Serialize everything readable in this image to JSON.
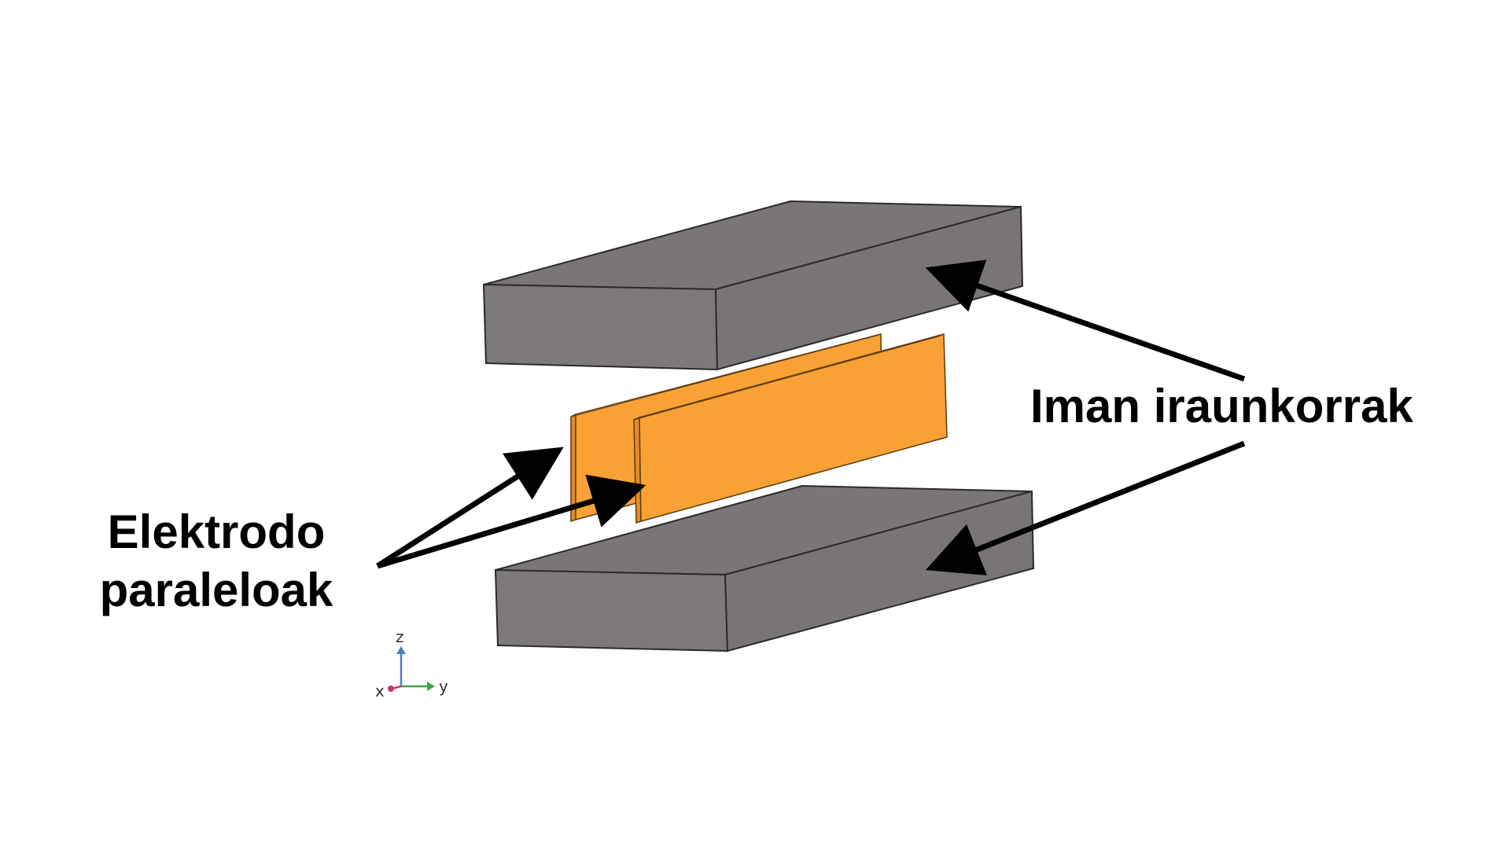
{
  "labels": {
    "magnets": "Iman iraunkorrak",
    "electrodes_line1": "Elektrodo",
    "electrodes_line2": "paraleloak"
  },
  "axes": {
    "z": "z",
    "y": "y",
    "x": "x"
  },
  "colors": {
    "magnet_top": "#7b7676",
    "magnet_front": "#7d7979",
    "magnet_side": "#6f6b6b",
    "magnet_edge": "#2a2a2a",
    "electrode": "#f9a134",
    "electrode_side": "#e58c22",
    "arrow": "#000000",
    "axis_z": "#4a7fc1",
    "axis_y": "#3fa84a",
    "axis_x": "#d2336a"
  }
}
